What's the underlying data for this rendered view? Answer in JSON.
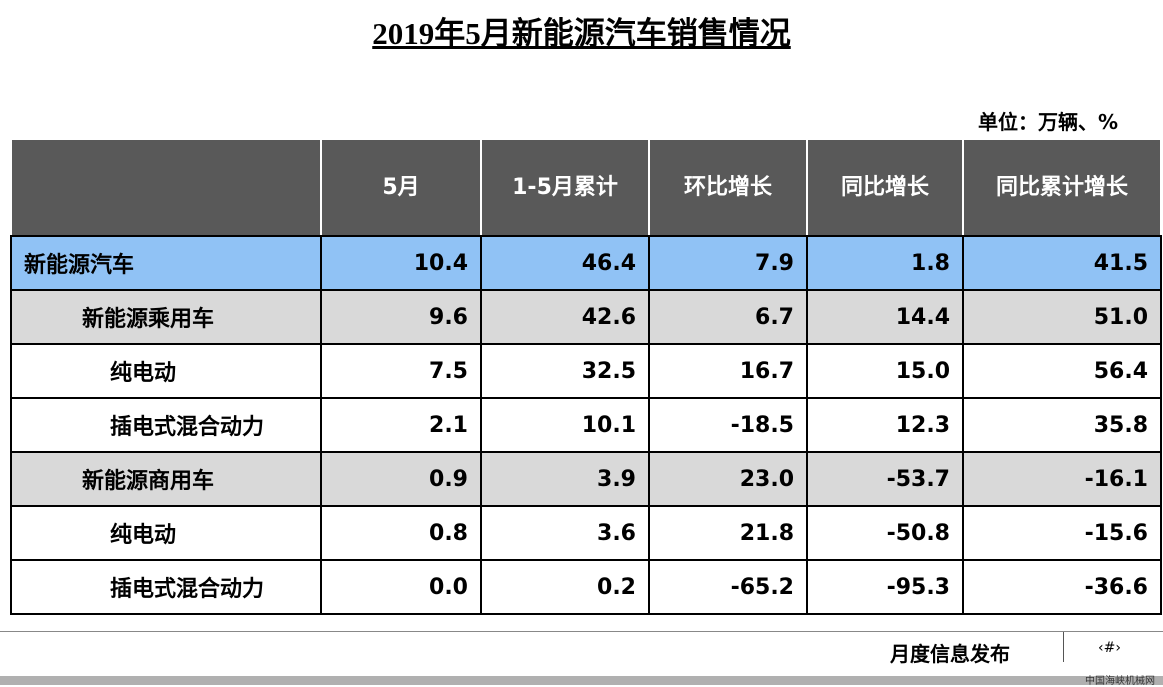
{
  "title": "2019年5月新能源汽车销售情况",
  "unit": "单位：万辆、%",
  "table": {
    "header": [
      "",
      "5月",
      "1-5月累计",
      "环比增长",
      "同比增长",
      "同比累计增长"
    ],
    "rows": [
      [
        "新能源汽车",
        "10.4",
        "46.4",
        "7.9",
        "1.8",
        "41.5"
      ],
      [
        "新能源乘用车",
        "9.6",
        "42.6",
        "6.7",
        "14.4",
        "51.0"
      ],
      [
        "纯电动",
        "7.5",
        "32.5",
        "16.7",
        "15.0",
        "56.4"
      ],
      [
        "插电式混合动力",
        "2.1",
        "10.1",
        "-18.5",
        "12.3",
        "35.8"
      ],
      [
        "新能源商用车",
        "0.9",
        "3.9",
        "23.0",
        "-53.7",
        "-16.1"
      ],
      [
        "纯电动",
        "0.8",
        "3.6",
        "21.8",
        "-50.8",
        "-15.6"
      ],
      [
        "插电式混合动力",
        "0.0",
        "0.2",
        "-65.2",
        "-95.3",
        "-36.6"
      ]
    ]
  },
  "footer": {
    "label": "月度信息发布",
    "page": "‹#›",
    "watermark": "中国海峡机械网"
  }
}
